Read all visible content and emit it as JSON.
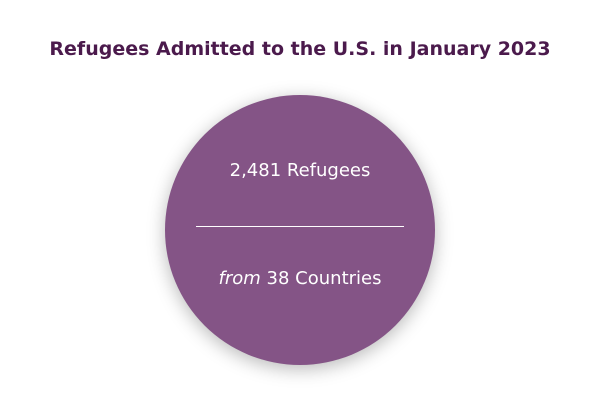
{
  "header": {
    "title": "Refugees Admitted to the U.S. in January 2023"
  },
  "stat": {
    "refugees": "2,481 Refugees",
    "prefix": "from",
    "countries": "38 Countries"
  }
}
